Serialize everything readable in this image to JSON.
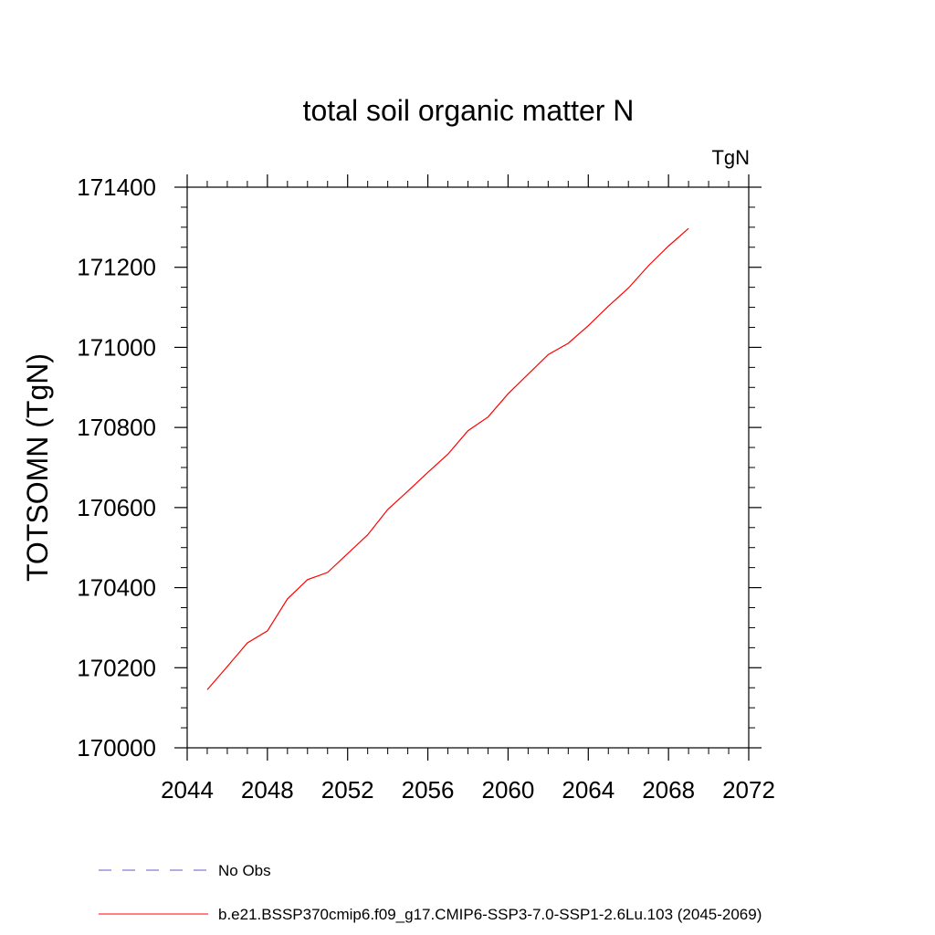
{
  "chart_data": {
    "type": "line",
    "title": "total soil organic matter N",
    "units_label": "TgN",
    "ylabel": "TOTSOMN  (TgN)",
    "xlabel": "",
    "xlim": [
      2044,
      2072
    ],
    "ylim": [
      170000,
      171400
    ],
    "x_major_ticks": [
      2044,
      2048,
      2052,
      2056,
      2060,
      2064,
      2068,
      2072
    ],
    "x_tick_labels": [
      "2044",
      "2048",
      "2052",
      "2056",
      "2060",
      "2064",
      "2068",
      "2072"
    ],
    "y_major_ticks": [
      170000,
      170200,
      170400,
      170600,
      170800,
      171000,
      171200,
      171400
    ],
    "y_tick_labels": [
      "170000",
      "170200",
      "170400",
      "170600",
      "170800",
      "171000",
      "171200",
      "171400"
    ],
    "grid": false,
    "legend_position": "bottom",
    "series": [
      {
        "name": "b.e21.BSSP370cmip6.f09_g17.CMIP6-SSP3-7.0-SSP1-2.6Lu.103 (2045-2069)",
        "color": "#ff0000",
        "dash": "solid",
        "x": [
          2045,
          2046,
          2047,
          2048,
          2049,
          2050,
          2051,
          2052,
          2053,
          2054,
          2055,
          2056,
          2057,
          2058,
          2059,
          2060,
          2061,
          2062,
          2063,
          2064,
          2065,
          2066,
          2067,
          2068,
          2069
        ],
        "y": [
          170145,
          170203,
          170262,
          170292,
          170372,
          170420,
          170438,
          170485,
          170532,
          170595,
          170641,
          170688,
          170733,
          170792,
          170826,
          170884,
          170933,
          170982,
          171010,
          171054,
          171103,
          171148,
          171204,
          171253,
          171297
        ]
      }
    ],
    "legend": [
      {
        "label": "No Obs",
        "color": "#6a5acd",
        "dash": "dashed"
      },
      {
        "label": "b.e21.BSSP370cmip6.f09_g17.CMIP6-SSP3-7.0-SSP1-2.6Lu.103 (2045-2069)",
        "color": "#ff0000",
        "dash": "solid"
      }
    ]
  }
}
